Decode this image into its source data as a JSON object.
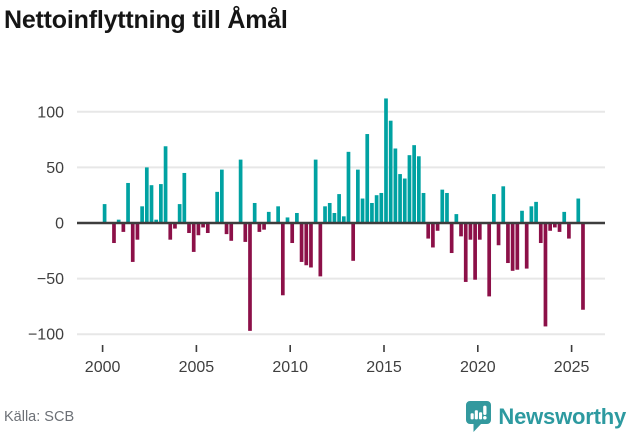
{
  "header": {
    "title": "Nettoinflyttning till Åmål"
  },
  "footer": {
    "source": "Källa: SCB",
    "brand": "Newsworthy"
  },
  "colors": {
    "positive_bar": "#00a2a2",
    "negative_bar": "#8c1048",
    "gridline": "#e7e7e7",
    "zero_line": "#3d3d3d",
    "axis_text": "#3f3f3f",
    "title_text": "#151515",
    "source_text": "#6c7076",
    "brand_teal": "#2d9aa0"
  },
  "chart_data": {
    "type": "bar",
    "title": "Nettoinflyttning till Åmål",
    "xlabel": "",
    "ylabel": "",
    "frequency": "quarterly",
    "grid": true,
    "legend": false,
    "ylim": [
      -105,
      116
    ],
    "yticks": [
      100,
      50,
      0,
      -50,
      -100
    ],
    "ytick_labels": [
      "100",
      "50",
      "0",
      "−50",
      "−100"
    ],
    "xticks": [
      2000,
      2005,
      2010,
      2015,
      2020,
      2025
    ],
    "xtick_labels": [
      "2000",
      "2005",
      "2010",
      "2015",
      "2020",
      "2025"
    ],
    "categories": [
      "2000Q1",
      "2000Q2",
      "2000Q3",
      "2000Q4",
      "2001Q1",
      "2001Q2",
      "2001Q3",
      "2001Q4",
      "2002Q1",
      "2002Q2",
      "2002Q3",
      "2002Q4",
      "2003Q1",
      "2003Q2",
      "2003Q3",
      "2003Q4",
      "2004Q1",
      "2004Q2",
      "2004Q3",
      "2004Q4",
      "2005Q1",
      "2005Q2",
      "2005Q3",
      "2005Q4",
      "2006Q1",
      "2006Q2",
      "2006Q3",
      "2006Q4",
      "2007Q1",
      "2007Q2",
      "2007Q3",
      "2007Q4",
      "2008Q1",
      "2008Q2",
      "2008Q3",
      "2008Q4",
      "2009Q1",
      "2009Q2",
      "2009Q3",
      "2009Q4",
      "2010Q1",
      "2010Q2",
      "2010Q3",
      "2010Q4",
      "2011Q1",
      "2011Q2",
      "2011Q3",
      "2011Q4",
      "2012Q1",
      "2012Q2",
      "2012Q3",
      "2012Q4",
      "2013Q1",
      "2013Q2",
      "2013Q3",
      "2013Q4",
      "2014Q1",
      "2014Q2",
      "2014Q3",
      "2014Q4",
      "2015Q1",
      "2015Q2",
      "2015Q3",
      "2015Q4",
      "2016Q1",
      "2016Q2",
      "2016Q3",
      "2016Q4",
      "2017Q1",
      "2017Q2",
      "2017Q3",
      "2017Q4",
      "2018Q1",
      "2018Q2",
      "2018Q3",
      "2018Q4",
      "2019Q1",
      "2019Q2",
      "2019Q3",
      "2019Q4",
      "2020Q1",
      "2020Q2",
      "2020Q3",
      "2020Q4",
      "2021Q1",
      "2021Q2",
      "2021Q3",
      "2021Q4",
      "2022Q1",
      "2022Q2",
      "2022Q3",
      "2022Q4",
      "2023Q1",
      "2023Q2",
      "2023Q3",
      "2023Q4",
      "2024Q1",
      "2024Q2",
      "2024Q3",
      "2024Q4",
      "2025Q1",
      "2025Q2",
      "2025Q3"
    ],
    "values": [
      17,
      0,
      -18,
      3,
      -8,
      36,
      -35,
      -15,
      15,
      50,
      34,
      3,
      35,
      69,
      -15,
      -5,
      17,
      45,
      -9,
      -26,
      -11,
      -4,
      -9,
      0,
      28,
      48,
      -10,
      -16,
      0,
      57,
      -17,
      -97,
      18,
      -8,
      -6,
      10,
      0,
      15,
      -65,
      5,
      -18,
      9,
      -35,
      -38,
      -40,
      57,
      -48,
      15,
      18,
      9,
      26,
      6,
      64,
      -34,
      48,
      22,
      80,
      18,
      25,
      27,
      112,
      92,
      67,
      44,
      40,
      61,
      70,
      60,
      27,
      -14,
      -22,
      -7,
      30,
      27,
      -27,
      8,
      -12,
      -53,
      -15,
      -51,
      -15,
      0,
      -66,
      26,
      -20,
      33,
      -36,
      -43,
      -42,
      11,
      -41,
      15,
      19,
      -18,
      -93,
      -7,
      -4,
      -8,
      10,
      -14,
      0,
      22,
      -78
    ]
  }
}
